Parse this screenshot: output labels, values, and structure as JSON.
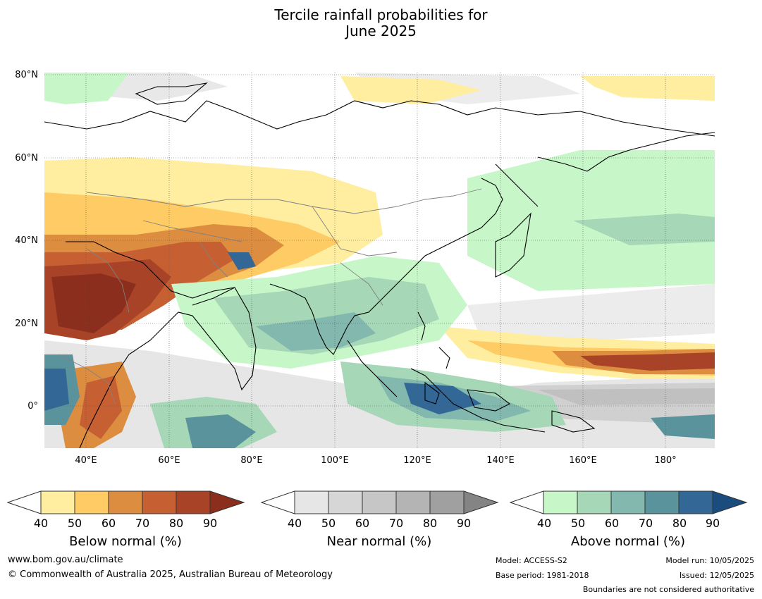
{
  "title": {
    "line1": "Tercile rainfall probabilities for",
    "line2": "June 2025"
  },
  "lat_labels": [
    "80°N",
    "60°N",
    "40°N",
    "20°N",
    "0°"
  ],
  "lon_labels": [
    "40°E",
    "60°E",
    "80°E",
    "100°E",
    "120°E",
    "140°E",
    "160°E",
    "180°"
  ],
  "colorbars": [
    {
      "title": "Below normal (%)",
      "ticks": [
        "40",
        "50",
        "60",
        "70",
        "80",
        "90"
      ],
      "colors": [
        "#ffeda0",
        "#fecb64",
        "#dd8d40",
        "#c66033",
        "#a94327",
        "#8c2e1d"
      ]
    },
    {
      "title": "Near normal (%)",
      "ticks": [
        "40",
        "50",
        "60",
        "70",
        "80",
        "90"
      ],
      "colors": [
        "#e6e6e6",
        "#d6d6d6",
        "#c6c6c6",
        "#b4b4b4",
        "#a0a0a0",
        "#848484"
      ]
    },
    {
      "title": "Above normal (%)",
      "ticks": [
        "40",
        "50",
        "60",
        "70",
        "80",
        "90"
      ],
      "colors": [
        "#c7f7c9",
        "#a6d7b6",
        "#82b8ad",
        "#5b939d",
        "#326796",
        "#1a4c7d"
      ]
    }
  ],
  "footer": {
    "website": "www.bom.gov.au/climate",
    "copyright": "© Commonwealth of Australia 2025, Australian Bureau of Meteorology",
    "model": "Model: ACCESS-S2",
    "base_period": "Base period: 1981-2018",
    "model_run": "Model run: 10/05/2025",
    "issued": "Issued: 12/05/2025",
    "disclaimer": "Boundaries are not considered authoritative"
  }
}
